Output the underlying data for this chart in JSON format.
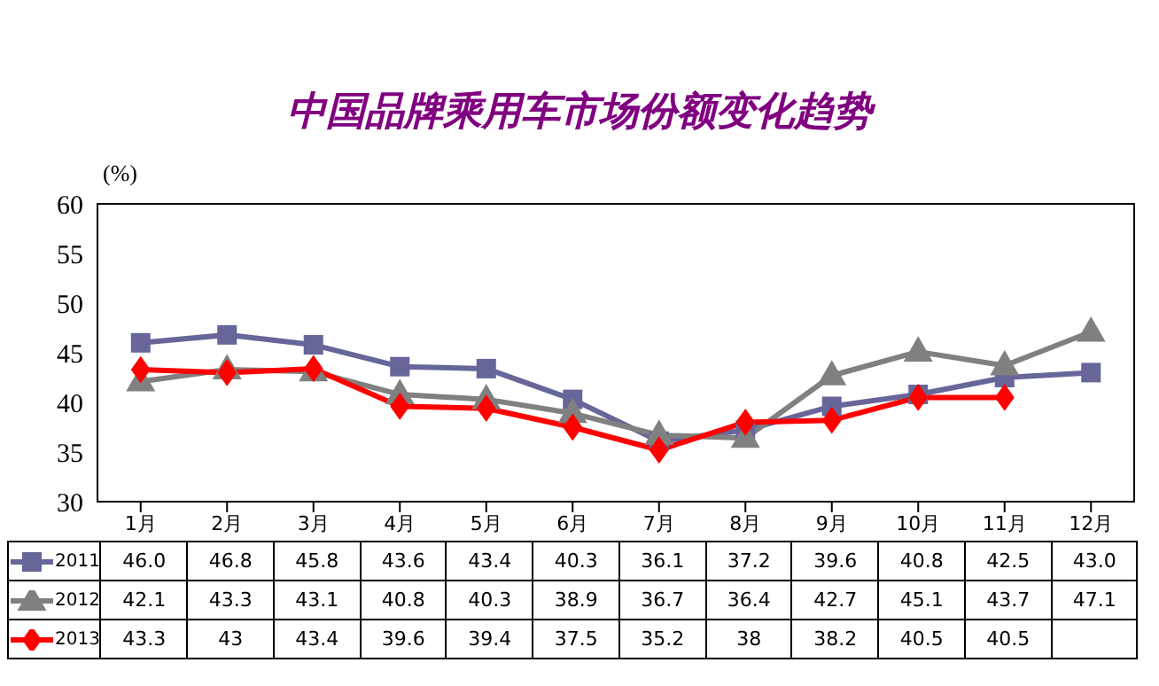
{
  "chart_data": {
    "type": "line",
    "title": "中国品牌乘用车市场份额变化趋势",
    "ylabel": "(%)",
    "categories": [
      "1月",
      "2月",
      "3月",
      "4月",
      "5月",
      "6月",
      "7月",
      "8月",
      "9月",
      "10月",
      "11月",
      "12月"
    ],
    "series": [
      {
        "name": "2011",
        "color": "#666699",
        "marker": "square",
        "values": [
          46.0,
          46.8,
          45.8,
          43.6,
          43.4,
          40.3,
          36.1,
          37.2,
          39.6,
          40.8,
          42.5,
          43.0
        ],
        "value_labels": [
          "46.0",
          "46.8",
          "45.8",
          "43.6",
          "43.4",
          "40.3",
          "36.1",
          "37.2",
          "39.6",
          "40.8",
          "42.5",
          "43.0"
        ]
      },
      {
        "name": "2012",
        "color": "#808080",
        "marker": "triangle",
        "values": [
          42.1,
          43.3,
          43.1,
          40.8,
          40.3,
          38.9,
          36.7,
          36.4,
          42.7,
          45.1,
          43.7,
          47.1
        ],
        "value_labels": [
          "42.1",
          "43.3",
          "43.1",
          "40.8",
          "40.3",
          "38.9",
          "36.7",
          "36.4",
          "42.7",
          "45.1",
          "43.7",
          "47.1"
        ]
      },
      {
        "name": "2013",
        "color": "#ff0000",
        "marker": "diamond",
        "values": [
          43.3,
          43,
          43.4,
          39.6,
          39.4,
          37.5,
          35.2,
          38,
          38.2,
          40.5,
          40.5,
          null
        ],
        "value_labels": [
          "43.3",
          "43",
          "43.4",
          "39.6",
          "39.4",
          "37.5",
          "35.2",
          "38",
          "38.2",
          "40.5",
          "40.5",
          null
        ]
      }
    ],
    "ylim": [
      30,
      60
    ],
    "yticks": [
      30,
      35,
      40,
      45,
      50,
      55,
      60
    ],
    "legend": "bottom left",
    "line_style": "solid"
  }
}
